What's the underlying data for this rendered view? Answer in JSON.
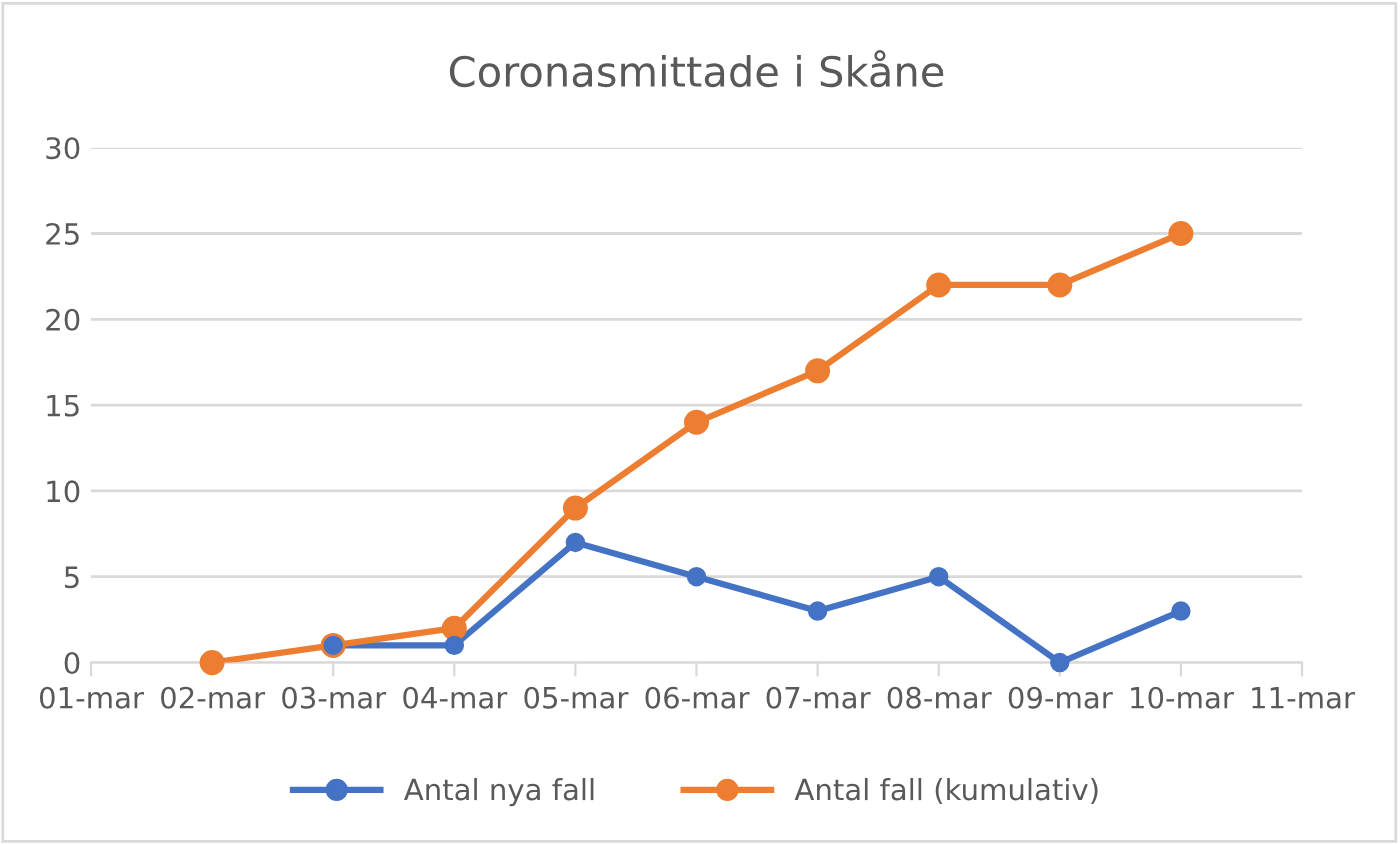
{
  "chart_data": {
    "type": "line",
    "title": "Coronasmittade i Skåne",
    "categories": [
      "01-mar",
      "02-mar",
      "03-mar",
      "04-mar",
      "05-mar",
      "06-mar",
      "07-mar",
      "08-mar",
      "09-mar",
      "10-mar",
      "11-mar"
    ],
    "series": [
      {
        "name": "Antal nya fall",
        "color": "#4472c4",
        "values": [
          null,
          null,
          1,
          1,
          7,
          5,
          3,
          5,
          0,
          3,
          null
        ]
      },
      {
        "name": "Antal fall (kumulativ)",
        "color": "#ed7d31",
        "values": [
          null,
          0,
          1,
          2,
          9,
          14,
          17,
          22,
          22,
          25,
          null
        ]
      }
    ],
    "ylim": [
      0,
      30
    ],
    "yticks": [
      0,
      5,
      10,
      15,
      20,
      25,
      30
    ],
    "grid": "y",
    "legend": "bottom",
    "marker": "circle",
    "line_style": "solid"
  }
}
